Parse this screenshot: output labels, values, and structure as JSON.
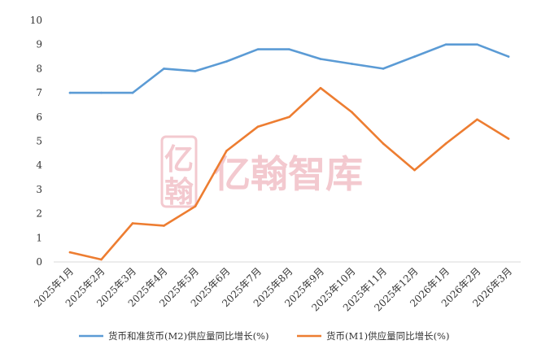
{
  "watermark": {
    "text": "亿翰智库",
    "logo_glyph_top": "亿",
    "logo_glyph_bottom": "翰",
    "color": "#f3c9cf"
  },
  "chart_data": {
    "type": "line",
    "title": "",
    "xlabel": "",
    "ylabel": "",
    "ylim": [
      0,
      10
    ],
    "yticks": [
      "0",
      "1",
      "2",
      "3",
      "4",
      "5",
      "6",
      "7",
      "8",
      "9",
      "10"
    ],
    "categories": [
      "2025年1月",
      "2025年2月",
      "2025年3月",
      "2025年4月",
      "2025年5月",
      "2025年6月",
      "2025年7月",
      "2025年8月",
      "2025年9月",
      "2025年10月",
      "2025年11月",
      "2025年12月",
      "2026年1月",
      "2026年2月",
      "2026年3月"
    ],
    "grid": false,
    "legend_position": "bottom",
    "series": [
      {
        "name": "货币和准货币(M2)供应量同比增长(%)",
        "color": "#5b9bd5",
        "values": [
          7.0,
          7.0,
          7.0,
          8.0,
          7.9,
          8.3,
          8.8,
          8.8,
          8.4,
          8.2,
          8.0,
          8.5,
          9.0,
          9.0,
          8.5
        ]
      },
      {
        "name": "货币(M1)供应量同比增长(%)",
        "color": "#ed7d31",
        "values": [
          0.4,
          0.1,
          1.6,
          1.5,
          2.3,
          4.6,
          5.6,
          6.0,
          7.2,
          6.2,
          4.9,
          3.8,
          4.9,
          5.9,
          5.1
        ]
      }
    ]
  }
}
